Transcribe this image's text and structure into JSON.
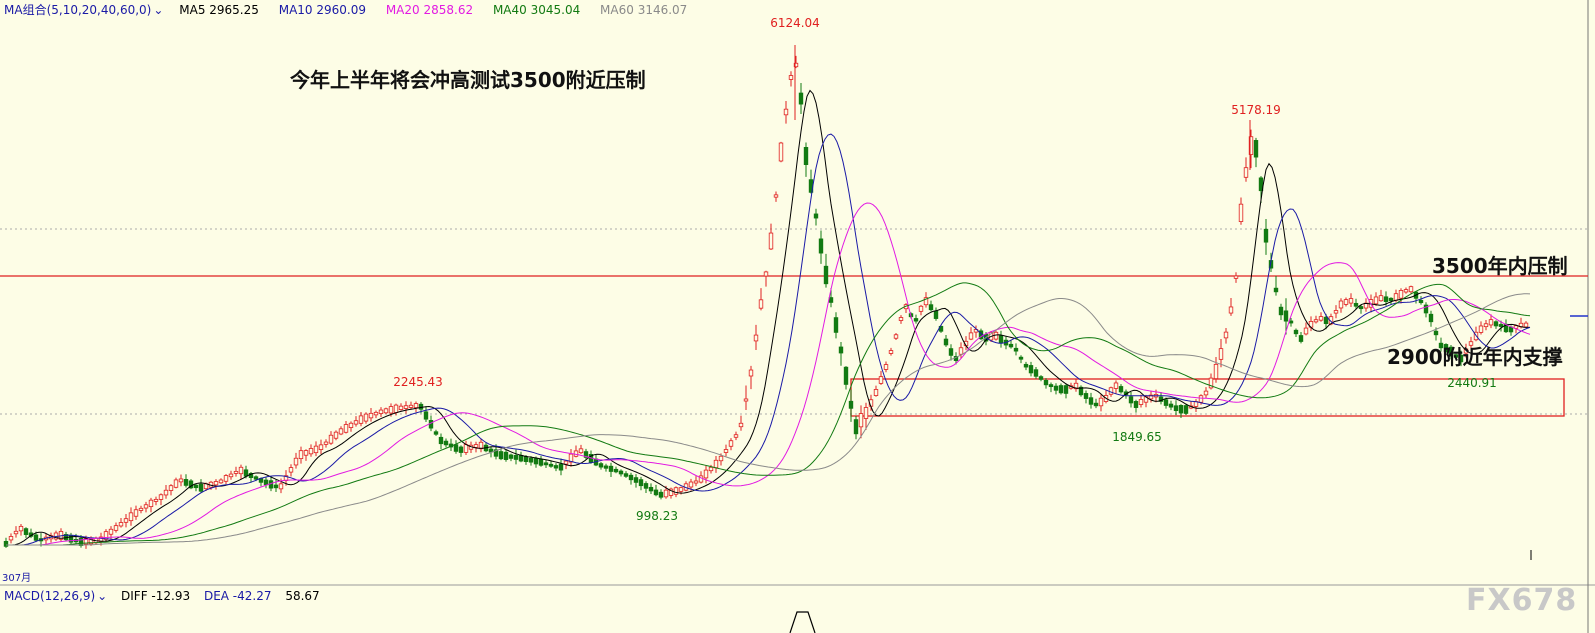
{
  "chart_data": {
    "type": "candlestick",
    "ma_legend": {
      "title": "MA组合(5,10,20,40,60,0)",
      "items": [
        {
          "label": "MA5 2965.25",
          "color": "#000000"
        },
        {
          "label": "MA10 2960.09",
          "color": "#1a1aa6"
        },
        {
          "label": "MA20 2858.62",
          "color": "#e21be2"
        },
        {
          "label": "MA40 3045.04",
          "color": "#127a12"
        },
        {
          "label": "MA60 3146.07",
          "color": "#8a8a8a"
        }
      ]
    },
    "macd_legend": {
      "title": "MACD(12,26,9)",
      "diff": "DIFF -12.93",
      "dea": "DEA -42.27",
      "value": "58.67"
    },
    "price_labels": [
      {
        "text": "6124.04",
        "value": 6124.04,
        "kind": "high"
      },
      {
        "text": "5178.19",
        "value": 5178.19,
        "kind": "high"
      },
      {
        "text": "2245.43",
        "value": 2245.43,
        "kind": "high"
      },
      {
        "text": "998.23",
        "value": 998.23,
        "kind": "low"
      },
      {
        "text": "1849.65",
        "value": 1849.65,
        "kind": "low"
      },
      {
        "text": "2440.91",
        "value": 2440.91,
        "kind": "low"
      }
    ],
    "x_start_label": "307月",
    "annotations": {
      "main": "今年上半年将会冲高测试3500附近压制",
      "resistance": "3500年内压制",
      "support": "2900附近年内支撑"
    },
    "resistance_line_value": 3500
  },
  "watermark": "FX678",
  "colors": {
    "background": "#fdfde6",
    "up": "#e02020",
    "down": "#127a12",
    "resistance": "#e02020"
  }
}
